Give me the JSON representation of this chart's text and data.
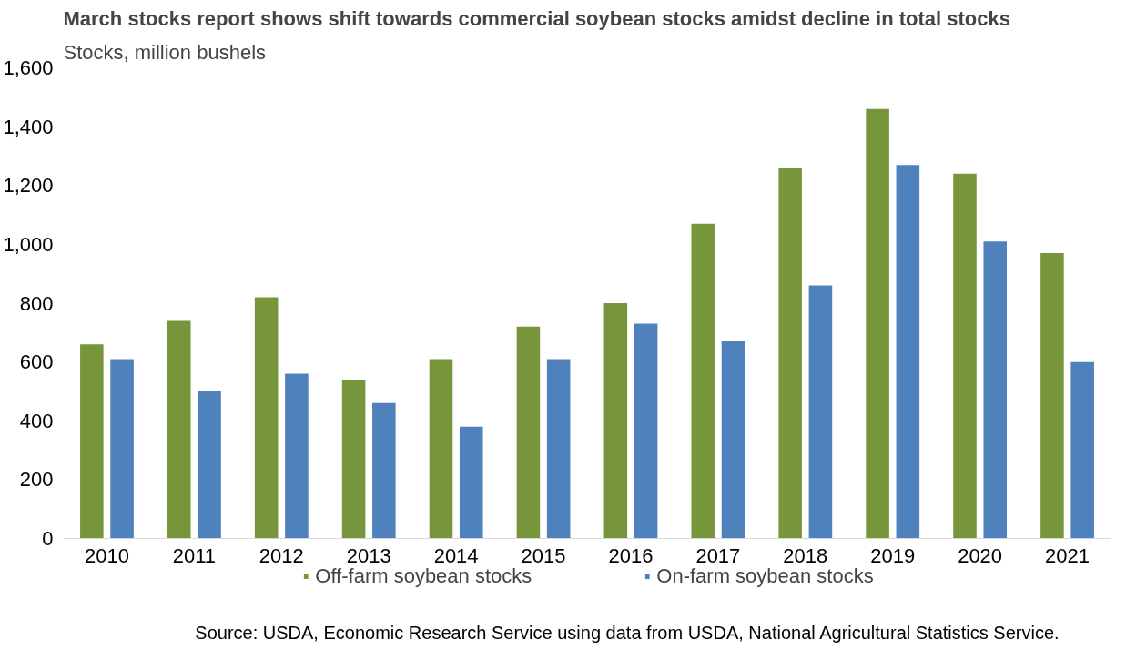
{
  "chart_data": {
    "type": "bar",
    "title": "March stocks report shows shift towards commercial soybean stocks amidst decline in total stocks",
    "subtitle": "Stocks, million bushels",
    "categories": [
      "2010",
      "2011",
      "2012",
      "2013",
      "2014",
      "2015",
      "2016",
      "2017",
      "2018",
      "2019",
      "2020",
      "2021"
    ],
    "series": [
      {
        "name": "Off-farm soybean stocks",
        "color": "#77963b",
        "values": [
          660,
          740,
          820,
          540,
          610,
          720,
          800,
          1070,
          1260,
          1460,
          1240,
          970
        ]
      },
      {
        "name": "On-farm soybean stocks",
        "color": "#4f81bd",
        "values": [
          610,
          500,
          560,
          460,
          380,
          610,
          730,
          670,
          860,
          1270,
          1010,
          600
        ]
      }
    ],
    "ylim": [
      0,
      1600
    ],
    "yticks": [
      {
        "value": 0,
        "label": "0"
      },
      {
        "value": 200,
        "label": "200"
      },
      {
        "value": 400,
        "label": "400"
      },
      {
        "value": 600,
        "label": "600"
      },
      {
        "value": 800,
        "label": "800"
      },
      {
        "value": 1000,
        "label": "1,000"
      },
      {
        "value": 1200,
        "label": "1,200"
      },
      {
        "value": 1400,
        "label": "1,400"
      },
      {
        "value": 1600,
        "label": "1,600"
      }
    ],
    "grid": false,
    "legend": "bottom",
    "annotations": [
      "Source: USDA, Economic Research Service using data from USDA, National Agricultural Statistics Service."
    ]
  }
}
